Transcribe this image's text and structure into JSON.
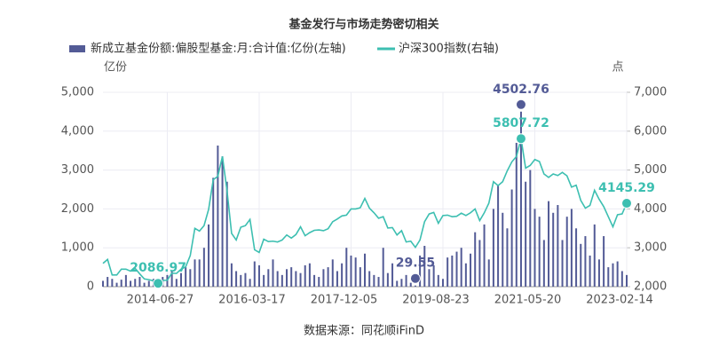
{
  "chart_data": {
    "type": "combo",
    "title": "基金发行与市场走势密切相关",
    "y_unit": "亿份",
    "y2_unit": "点",
    "source": "数据来源：同花顺iFinD",
    "categories": [
      null,
      null,
      null,
      null,
      null,
      null,
      null,
      null,
      null,
      null,
      null,
      null,
      null,
      null,
      "2014-06-27",
      null,
      null,
      null,
      null,
      null,
      null,
      null,
      null,
      null,
      null,
      null,
      null,
      null,
      null,
      null,
      null,
      null,
      null,
      null,
      "2016-03-17",
      null,
      null,
      null,
      null,
      null,
      null,
      null,
      null,
      null,
      null,
      null,
      null,
      null,
      null,
      null,
      null,
      null,
      null,
      null,
      "2017-12-05",
      null,
      null,
      null,
      null,
      null,
      null,
      null,
      null,
      null,
      null,
      null,
      null,
      null,
      null,
      null,
      null,
      null,
      null,
      null,
      "2019-08-23",
      null,
      null,
      null,
      null,
      null,
      null,
      null,
      null,
      null,
      null,
      null,
      null,
      null,
      null,
      null,
      null,
      null,
      null,
      null,
      "2021-05-20",
      null,
      null,
      null,
      null,
      null,
      null,
      null,
      null,
      null,
      null,
      null,
      null,
      null,
      null,
      null,
      null,
      null,
      null,
      null,
      "2023-02-14"
    ],
    "series": [
      {
        "name": "新成立基金份额:偏股型基金:月:合计值:亿份(左轴)",
        "type": "bar",
        "color": "#535b96",
        "values": [
          150,
          250,
          200,
          100,
          180,
          300,
          150,
          200,
          250,
          100,
          150,
          200,
          180,
          250,
          300,
          400,
          200,
          350,
          500,
          450,
          700,
          700,
          1000,
          1600,
          2800,
          3630,
          3350,
          2700,
          600,
          400,
          300,
          350,
          200,
          650,
          550,
          300,
          450,
          700,
          400,
          300,
          450,
          500,
          400,
          350,
          550,
          600,
          300,
          250,
          450,
          500,
          700,
          400,
          600,
          1000,
          800,
          750,
          500,
          850,
          400,
          300,
          250,
          1000,
          350,
          600,
          150,
          200,
          300,
          100,
          29.55,
          800,
          1050,
          450,
          550,
          300,
          200,
          750,
          800,
          900,
          1000,
          600,
          850,
          1400,
          1200,
          1600,
          700,
          2000,
          2600,
          1900,
          1500,
          2500,
          3700,
          4502.76,
          2700,
          3000,
          2000,
          1800,
          1200,
          2200,
          1900,
          2100,
          1200,
          1800,
          2000,
          1500,
          1100,
          1300,
          800,
          1600,
          700,
          1300,
          500,
          600,
          650,
          400,
          300
        ]
      },
      {
        "name": "沪深300指数(右轴)",
        "type": "line",
        "axis": "y2",
        "color": "#3dbfb1",
        "values": [
          2600,
          2700,
          2300,
          2300,
          2450,
          2450,
          2400,
          2470,
          2330,
          2200,
          2180,
          2150,
          2086.97,
          2160,
          2165,
          2350,
          2340,
          2450,
          2510,
          2800,
          3500,
          3430,
          3570,
          3990,
          4750,
          4840,
          5350,
          4470,
          3370,
          3200,
          3530,
          3570,
          3730,
          2950,
          2880,
          3220,
          3160,
          3170,
          3150,
          3200,
          3330,
          3250,
          3340,
          3540,
          3310,
          3390,
          3450,
          3460,
          3440,
          3490,
          3670,
          3740,
          3820,
          3840,
          4000,
          4000,
          4030,
          4270,
          4020,
          3900,
          3760,
          3800,
          3510,
          3520,
          3330,
          3440,
          3150,
          3170,
          3010,
          3200,
          3670,
          3870,
          3910,
          3630,
          3830,
          3840,
          3800,
          3810,
          3890,
          3830,
          3900,
          4000,
          3700,
          3900,
          4150,
          4700,
          4600,
          4700,
          4980,
          5210,
          5350,
          5807.72,
          5050,
          5120,
          5270,
          5220,
          4900,
          4810,
          4900,
          4860,
          4940,
          4850,
          4560,
          4610,
          4220,
          4020,
          4090,
          4480,
          4250,
          4060,
          3800,
          3540,
          3850,
          3870,
          4145.29
        ]
      }
    ],
    "ylim": [
      0,
      5000
    ],
    "yticks": [
      0,
      {
        "value": 1000,
        "label": "1,000"
      },
      {
        "value": 2000,
        "label": "2,000"
      },
      {
        "value": 3000,
        "label": "3,000"
      },
      {
        "value": 4000,
        "label": "4,000"
      },
      {
        "value": 5000,
        "label": "5,000"
      }
    ],
    "y2lim": [
      2000,
      7000
    ],
    "y2ticks": [
      {
        "value": 2000,
        "label": "2,000"
      },
      {
        "value": 3000,
        "label": "3,000"
      },
      {
        "value": 4000,
        "label": "4,000"
      },
      {
        "value": 5000,
        "label": "5,000"
      },
      {
        "value": 6000,
        "label": "6,000"
      },
      {
        "value": 7000,
        "label": "7,000"
      }
    ],
    "grid": true
  }
}
